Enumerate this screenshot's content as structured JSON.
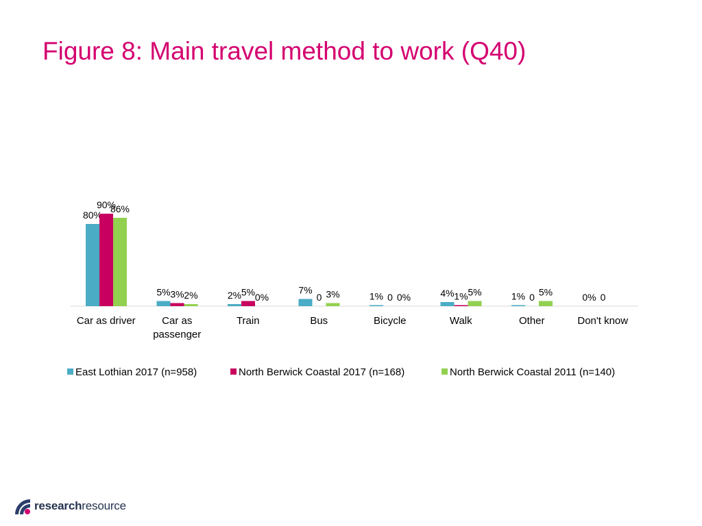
{
  "title": "Figure 8: Main travel method to work (Q40)",
  "logo": {
    "bold": "research",
    "light": "resource"
  },
  "colors": {
    "series": [
      "#4bacc6",
      "#c8005f",
      "#92d050"
    ],
    "title": "#d4006f"
  },
  "chart_data": {
    "type": "bar",
    "categories": [
      [
        "Car as driver"
      ],
      [
        "Car as",
        "passenger"
      ],
      [
        "Train"
      ],
      [
        "Bus"
      ],
      [
        "Bicycle"
      ],
      [
        "Walk"
      ],
      [
        "Other"
      ],
      [
        "Don't know"
      ]
    ],
    "series": [
      {
        "name": "East Lothian 2017 (n=958)",
        "values": [
          80,
          5,
          2,
          7,
          1,
          4,
          1,
          0
        ],
        "labels": [
          "80%",
          "5%",
          "2%",
          "7%",
          "1%",
          "4%",
          "1%",
          "0%"
        ]
      },
      {
        "name": "North Berwick Coastal 2017 (n=168)",
        "values": [
          90,
          3,
          5,
          0,
          0,
          1,
          0,
          0
        ],
        "labels": [
          "90%",
          "3%",
          "5%",
          "0",
          "0",
          "1%",
          "0",
          "0"
        ]
      },
      {
        "name": "North Berwick Coastal 2011 (n=140)",
        "values": [
          86,
          2,
          0,
          3,
          0,
          5,
          5,
          null
        ],
        "labels": [
          "86%",
          "2%",
          "0%",
          "3%",
          "0%",
          "5%",
          "5%",
          ""
        ]
      }
    ],
    "ylim": [
      0,
      100
    ],
    "legend": "bottom",
    "grid": false
  }
}
